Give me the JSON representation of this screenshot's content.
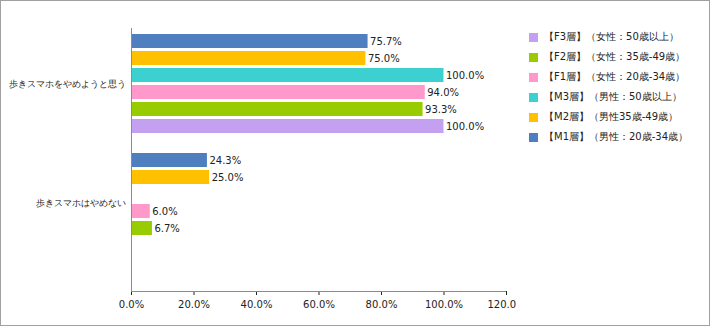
{
  "chart_data": {
    "type": "bar",
    "orientation": "horizontal",
    "categories": [
      "歩きスマホをやめようと思う",
      "歩きスマホはやめない"
    ],
    "series": [
      {
        "name": "【F3層】（女性：50歳以上）",
        "color": "#c3a1f0",
        "values": [
          100.0,
          null
        ],
        "value_labels": [
          "100.0%",
          null
        ]
      },
      {
        "name": "【F2層】（女性：35歳-49歳）",
        "color": "#99cc00",
        "values": [
          93.3,
          6.7
        ],
        "value_labels": [
          "93.3%",
          "6.7%"
        ]
      },
      {
        "name": "【F1層】（女性：20歳-34歳）",
        "color": "#ff99cc",
        "values": [
          94.0,
          6.0
        ],
        "value_labels": [
          "94.0%",
          "6.0%"
        ]
      },
      {
        "name": "【M3層】（男性：50歳以上）",
        "color": "#3dd0d0",
        "values": [
          100.0,
          null
        ],
        "value_labels": [
          "100.0%",
          null
        ]
      },
      {
        "name": "【M2層】（男性35歳-49歳）",
        "color": "#ffc000",
        "values": [
          75.0,
          25.0
        ],
        "value_labels": [
          "75.0%",
          "25.0%"
        ]
      },
      {
        "name": "【M1層】（男性：20歳-34歳）",
        "color": "#4f7fbf",
        "values": [
          75.7,
          24.3
        ],
        "value_labels": [
          "75.7%",
          "24.3%"
        ]
      }
    ],
    "xlim": [
      0,
      120
    ],
    "xticks": [
      {
        "value": 0,
        "label": "0.0%"
      },
      {
        "value": 20,
        "label": "20.0%"
      },
      {
        "value": 40,
        "label": "40.0%"
      },
      {
        "value": 60,
        "label": "60.0%"
      },
      {
        "value": 80,
        "label": "80.0%"
      },
      {
        "value": 100,
        "label": "100.0%"
      },
      {
        "value": 120,
        "label": "120.0%"
      }
    ],
    "data_labels": true,
    "grid": false,
    "legend": "right"
  }
}
